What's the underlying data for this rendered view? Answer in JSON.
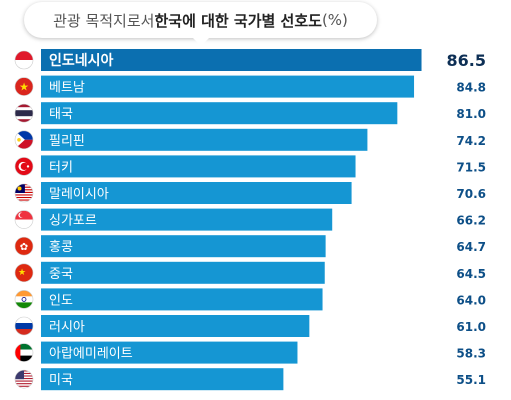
{
  "title": {
    "lead": "관광 목적지로서 ",
    "bold": "한국에 대한 국가별 선호도",
    "tail": "(%)"
  },
  "chart_data": {
    "type": "bar",
    "orientation": "horizontal",
    "title": "관광 목적지로서 한국에 대한 국가별 선호도(%)",
    "categories": [
      "인도네시아",
      "베트남",
      "태국",
      "필리핀",
      "터키",
      "말레이시아",
      "싱가포르",
      "홍콩",
      "중국",
      "인도",
      "러시아",
      "아랍에미레이트",
      "미국"
    ],
    "values": [
      86.5,
      84.8,
      81.0,
      74.2,
      71.5,
      70.6,
      66.2,
      64.7,
      64.5,
      64.0,
      61.0,
      58.3,
      55.1
    ],
    "value_labels": [
      "86.5",
      "84.8",
      "81.0",
      "74.2",
      "71.5",
      "70.6",
      "66.2",
      "64.7",
      "64.5",
      "64.0",
      "61.0",
      "58.3",
      "55.1"
    ],
    "flags": [
      "indonesia-flag",
      "vietnam-flag",
      "thailand-flag",
      "philippines-flag",
      "turkey-flag",
      "malaysia-flag",
      "singapore-flag",
      "hongkong-flag",
      "china-flag",
      "india-flag",
      "russia-flag",
      "uae-flag",
      "usa-flag"
    ],
    "colors": {
      "top_bar": "#0b6fb0",
      "bar": "#1596d3",
      "track": "#ffffff",
      "value_text": "#0d4f87"
    },
    "grid": false
  }
}
